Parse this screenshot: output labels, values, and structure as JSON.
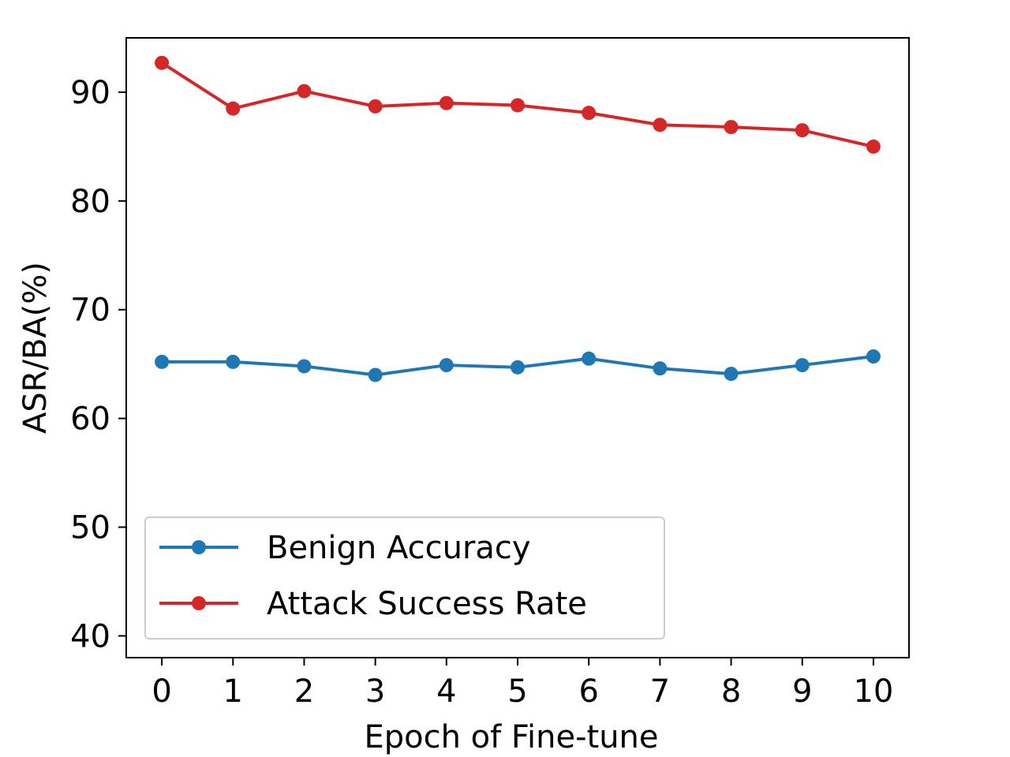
{
  "chart_data": {
    "type": "line",
    "title": "",
    "xlabel": "Epoch of Fine-tune",
    "ylabel": "ASR/BA(%)",
    "x": [
      0,
      1,
      2,
      3,
      4,
      5,
      6,
      7,
      8,
      9,
      10
    ],
    "xticks": [
      "0",
      "1",
      "2",
      "3",
      "4",
      "5",
      "6",
      "7",
      "8",
      "9",
      "10"
    ],
    "xlim": [
      -0.5,
      10.5
    ],
    "yticks": [
      "40",
      "50",
      "60",
      "70",
      "80",
      "90"
    ],
    "ytick_values": [
      40,
      50,
      60,
      70,
      80,
      90
    ],
    "ylim": [
      38,
      95
    ],
    "grid": false,
    "legend_position": "lower-left",
    "series": [
      {
        "name": "Benign Accuracy",
        "color": "#1f77b4",
        "marker": "circle",
        "values": [
          65.2,
          65.2,
          64.8,
          64.0,
          64.9,
          64.7,
          65.5,
          64.6,
          64.1,
          64.9,
          65.7
        ]
      },
      {
        "name": "Attack Success Rate",
        "color": "#d62728",
        "marker": "circle",
        "values": [
          92.7,
          88.5,
          90.1,
          88.7,
          89.0,
          88.8,
          88.1,
          87.0,
          86.8,
          86.5,
          85.0
        ]
      }
    ]
  }
}
